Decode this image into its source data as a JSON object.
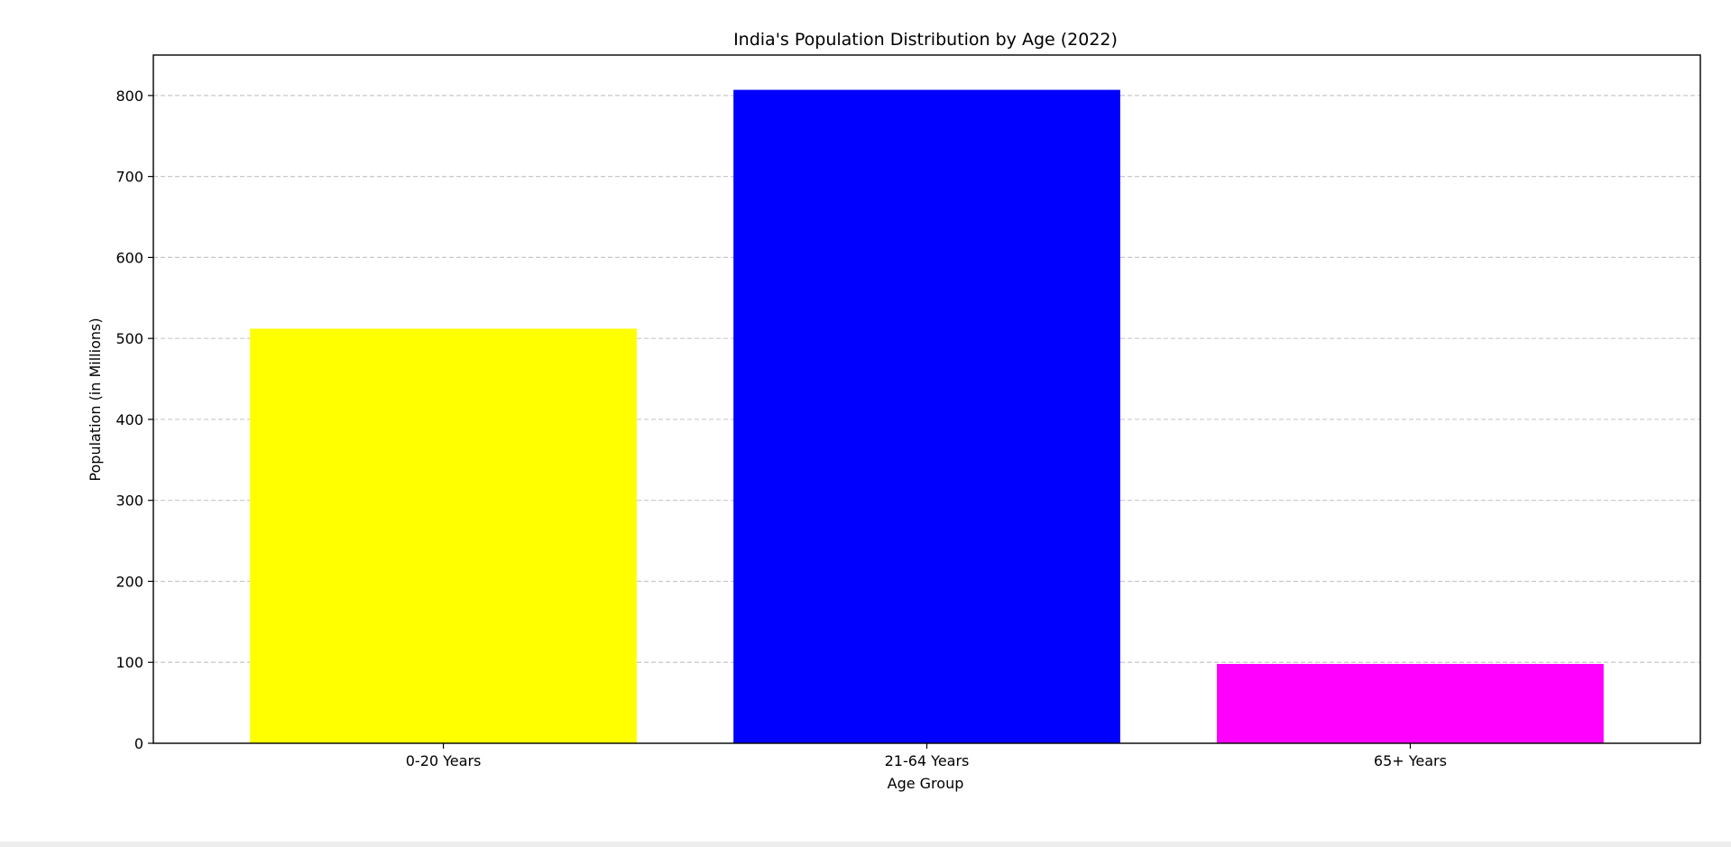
{
  "chart_data": {
    "type": "bar",
    "title": "India's Population Distribution by Age (2022)",
    "xlabel": "Age Group",
    "ylabel": "Population (in Millions)",
    "categories": [
      "0-20 Years",
      "21-64 Years",
      "65+ Years"
    ],
    "values": [
      512,
      807,
      98
    ],
    "colors": [
      "#ffff00",
      "#0000ff",
      "#ff00ff"
    ],
    "ylim": [
      0,
      850
    ],
    "yticks": [
      "0",
      "100",
      "200",
      "300",
      "400",
      "500",
      "600",
      "700",
      "800"
    ],
    "grid": "y-dashed",
    "legend": "none"
  }
}
